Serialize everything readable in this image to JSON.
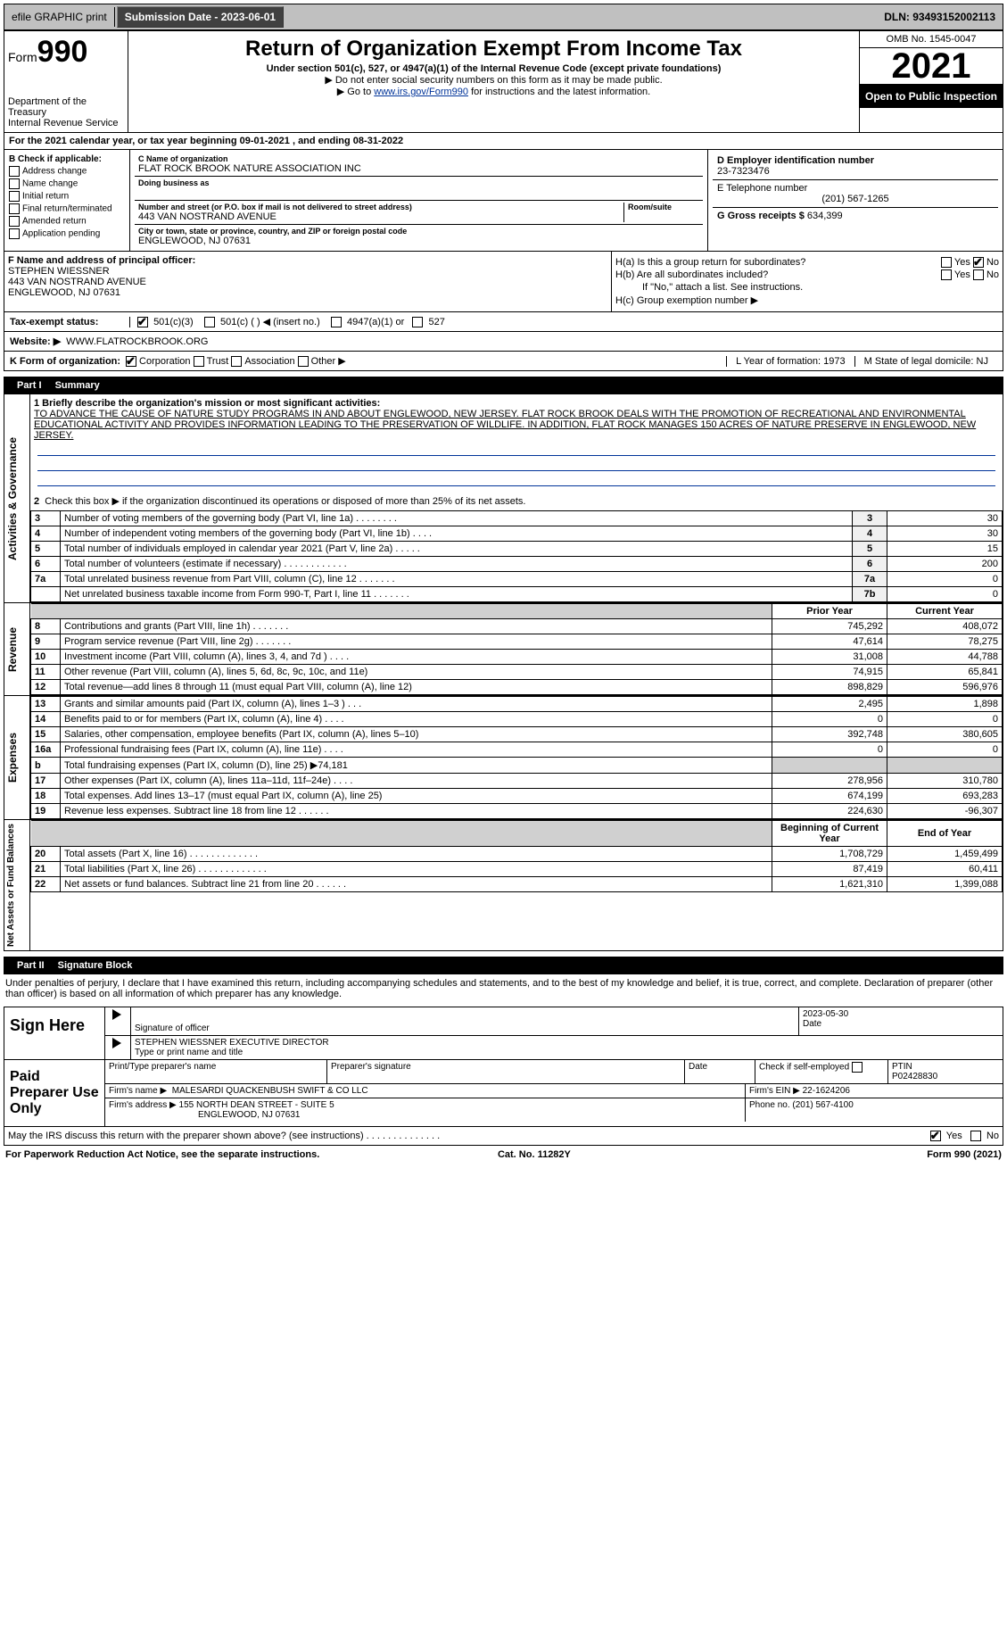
{
  "topbar": {
    "efile": "efile GRAPHIC print",
    "submission_label": "Submission Date - 2023-06-01",
    "dln": "DLN: 93493152002113"
  },
  "header": {
    "form_word": "Form",
    "form_num": "990",
    "dept": "Department of the Treasury",
    "irs": "Internal Revenue Service",
    "title": "Return of Organization Exempt From Income Tax",
    "subtitle": "Under section 501(c), 527, or 4947(a)(1) of the Internal Revenue Code (except private foundations)",
    "note1": "▶ Do not enter social security numbers on this form as it may be made public.",
    "note2_pre": "▶ Go to ",
    "note2_link": "www.irs.gov/Form990",
    "note2_post": " for instructions and the latest information.",
    "omb": "OMB No. 1545-0047",
    "year": "2021",
    "inspect": "Open to Public Inspection"
  },
  "period": {
    "label_a": "For the 2021 calendar year, or tax year beginning ",
    "begin": "09-01-2021",
    "label_b": " , and ending ",
    "end": "08-31-2022"
  },
  "checkB": {
    "title": "B Check if applicable:",
    "items": [
      "Address change",
      "Name change",
      "Initial return",
      "Final return/terminated",
      "Amended return",
      "Application pending"
    ]
  },
  "blockC": {
    "name_label": "C Name of organization",
    "name": "FLAT ROCK BROOK NATURE ASSOCIATION INC",
    "dba_label": "Doing business as",
    "addr_label": "Number and street (or P.O. box if mail is not delivered to street address)",
    "room_label": "Room/suite",
    "addr": "443 VAN NOSTRAND AVENUE",
    "city_label": "City or town, state or province, country, and ZIP or foreign postal code",
    "city": "ENGLEWOOD, NJ  07631"
  },
  "blockD": {
    "ein_label": "D Employer identification number",
    "ein": "23-7323476",
    "tel_label": "E Telephone number",
    "tel": "(201) 567-1265",
    "gross_label": "G Gross receipts $",
    "gross": "634,399"
  },
  "blockF": {
    "label": "F Name and address of principal officer:",
    "name": "STEPHEN WIESSNER",
    "addr1": "443 VAN NOSTRAND AVENUE",
    "addr2": "ENGLEWOOD, NJ  07631"
  },
  "blockH": {
    "ha": "H(a)  Is this a group return for subordinates?",
    "hb": "H(b)  Are all subordinates included?",
    "hb_note": "If \"No,\" attach a list. See instructions.",
    "hc": "H(c)  Group exemption number ▶",
    "yes": "Yes",
    "no": "No"
  },
  "status": {
    "label": "Tax-exempt status:",
    "c3": "501(c)(3)",
    "c": "501(c) (   ) ◀ (insert no.)",
    "a1": "4947(a)(1) or",
    "s527": "527"
  },
  "website": {
    "label": "Website: ▶",
    "url": "WWW.FLATROCKBROOK.ORG"
  },
  "korg": {
    "label": "K Form of organization:",
    "corp": "Corporation",
    "trust": "Trust",
    "assoc": "Association",
    "other": "Other ▶",
    "yof_label": "L Year of formation: ",
    "yof": "1973",
    "dom_label": "M State of legal domicile: ",
    "dom": "NJ"
  },
  "part1": {
    "title": "Part I",
    "name": "Summary",
    "q1_label": "1  Briefly describe the organization's mission or most significant activities:",
    "mission": "TO ADVANCE THE CAUSE OF NATURE STUDY PROGRAMS IN AND ABOUT ENGLEWOOD, NEW JERSEY. FLAT ROCK BROOK DEALS WITH THE PROMOTION OF RECREATIONAL AND ENVIRONMENTAL EDUCATIONAL ACTIVITY AND PROVIDES INFORMATION LEADING TO THE PRESERVATION OF WILDLIFE. IN ADDITION, FLAT ROCK MANAGES 150 ACRES OF NATURE PRESERVE IN ENGLEWOOD, NEW JERSEY.",
    "q2": "Check this box ▶        if the organization discontinued its operations or disposed of more than 25% of its net assets.",
    "rows_gov": [
      {
        "n": "3",
        "d": "Number of voting members of the governing body (Part VI, line 1a)  .  .  .  .  .  .  .  .",
        "box": "3",
        "v": "30"
      },
      {
        "n": "4",
        "d": "Number of independent voting members of the governing body (Part VI, line 1b)  .  .  .  .",
        "box": "4",
        "v": "30"
      },
      {
        "n": "5",
        "d": "Total number of individuals employed in calendar year 2021 (Part V, line 2a)  .  .  .  .  .",
        "box": "5",
        "v": "15"
      },
      {
        "n": "6",
        "d": "Total number of volunteers (estimate if necessary)  .  .  .  .  .  .  .  .  .  .  .  .",
        "box": "6",
        "v": "200"
      },
      {
        "n": "7a",
        "d": "Total unrelated business revenue from Part VIII, column (C), line 12  .  .  .  .  .  .  .",
        "box": "7a",
        "v": "0"
      },
      {
        "n": "",
        "d": "Net unrelated business taxable income from Form 990-T, Part I, line 11  .  .  .  .  .  .  .",
        "box": "7b",
        "v": "0"
      }
    ],
    "prior": "Prior Year",
    "current": "Current Year",
    "rows_rev": [
      {
        "n": "8",
        "d": "Contributions and grants (Part VIII, line 1h)  .  .  .  .  .  .  .",
        "p": "745,292",
        "c": "408,072"
      },
      {
        "n": "9",
        "d": "Program service revenue (Part VIII, line 2g)  .  .  .  .  .  .  .",
        "p": "47,614",
        "c": "78,275"
      },
      {
        "n": "10",
        "d": "Investment income (Part VIII, column (A), lines 3, 4, and 7d )  .  .  .  .",
        "p": "31,008",
        "c": "44,788"
      },
      {
        "n": "11",
        "d": "Other revenue (Part VIII, column (A), lines 5, 6d, 8c, 9c, 10c, and 11e)",
        "p": "74,915",
        "c": "65,841"
      },
      {
        "n": "12",
        "d": "Total revenue—add lines 8 through 11 (must equal Part VIII, column (A), line 12)",
        "p": "898,829",
        "c": "596,976"
      }
    ],
    "rows_exp": [
      {
        "n": "13",
        "d": "Grants and similar amounts paid (Part IX, column (A), lines 1–3 )  .  .  .",
        "p": "2,495",
        "c": "1,898"
      },
      {
        "n": "14",
        "d": "Benefits paid to or for members (Part IX, column (A), line 4)  .  .  .  .",
        "p": "0",
        "c": "0"
      },
      {
        "n": "15",
        "d": "Salaries, other compensation, employee benefits (Part IX, column (A), lines 5–10)",
        "p": "392,748",
        "c": "380,605"
      },
      {
        "n": "16a",
        "d": "Professional fundraising fees (Part IX, column (A), line 11e)  .  .  .  .",
        "p": "0",
        "c": "0"
      },
      {
        "n": "b",
        "d": "Total fundraising expenses (Part IX, column (D), line 25) ▶74,181",
        "p": "",
        "c": "",
        "shade": true
      },
      {
        "n": "17",
        "d": "Other expenses (Part IX, column (A), lines 11a–11d, 11f–24e)  .  .  .  .",
        "p": "278,956",
        "c": "310,780"
      },
      {
        "n": "18",
        "d": "Total expenses. Add lines 13–17 (must equal Part IX, column (A), line 25)",
        "p": "674,199",
        "c": "693,283"
      },
      {
        "n": "19",
        "d": "Revenue less expenses. Subtract line 18 from line 12  .  .  .  .  .  .",
        "p": "224,630",
        "c": "-96,307"
      }
    ],
    "begin": "Beginning of Current Year",
    "end": "End of Year",
    "rows_net": [
      {
        "n": "20",
        "d": "Total assets (Part X, line 16)  .  .  .  .  .  .  .  .  .  .  .  .  .",
        "p": "1,708,729",
        "c": "1,459,499"
      },
      {
        "n": "21",
        "d": "Total liabilities (Part X, line 26)  .  .  .  .  .  .  .  .  .  .  .  .  .",
        "p": "87,419",
        "c": "60,411"
      },
      {
        "n": "22",
        "d": "Net assets or fund balances. Subtract line 21 from line 20  .  .  .  .  .  .",
        "p": "1,621,310",
        "c": "1,399,088"
      }
    ],
    "side_gov": "Activities & Governance",
    "side_rev": "Revenue",
    "side_exp": "Expenses",
    "side_net": "Net Assets or Fund Balances"
  },
  "part2": {
    "title": "Part II",
    "name": "Signature Block",
    "decl": "Under penalties of perjury, I declare that I have examined this return, including accompanying schedules and statements, and to the best of my knowledge and belief, it is true, correct, and complete. Declaration of preparer (other than officer) is based on all information of which preparer has any knowledge.",
    "sign_here": "Sign Here",
    "sig_officer": "Signature of officer",
    "date": "Date",
    "sig_date": "2023-05-30",
    "officer_name": "STEPHEN WIESSNER  EXECUTIVE DIRECTOR",
    "type_name": "Type or print name and title",
    "paid": "Paid Preparer Use Only",
    "prep_name_label": "Print/Type preparer's name",
    "prep_sig_label": "Preparer's signature",
    "date_label": "Date",
    "check_self": "Check         if self-employed",
    "ptin_label": "PTIN",
    "ptin": "P02428830",
    "firm_name_label": "Firm's name      ▶",
    "firm_name": "MALESARDI QUACKENBUSH SWIFT & CO LLC",
    "firm_ein_label": "Firm's EIN ▶",
    "firm_ein": "22-1624206",
    "firm_addr_label": "Firm's address ▶",
    "firm_addr1": "155 NORTH DEAN STREET - SUITE 5",
    "firm_addr2": "ENGLEWOOD, NJ  07631",
    "phone_label": "Phone no. ",
    "phone": "(201) 567-4100",
    "may_irs": "May the IRS discuss this return with the preparer shown above? (see instructions)  .  .  .  .  .  .  .  .  .  .  .  .  .  .",
    "yes": "Yes",
    "no": "No"
  },
  "footer": {
    "pra": "For Paperwork Reduction Act Notice, see the separate instructions.",
    "cat": "Cat. No. 11282Y",
    "form": "Form 990 (2021)"
  },
  "colors": {
    "link": "#003399",
    "topbar_bg": "#c0c0c0",
    "shade": "#d0d0d0"
  }
}
